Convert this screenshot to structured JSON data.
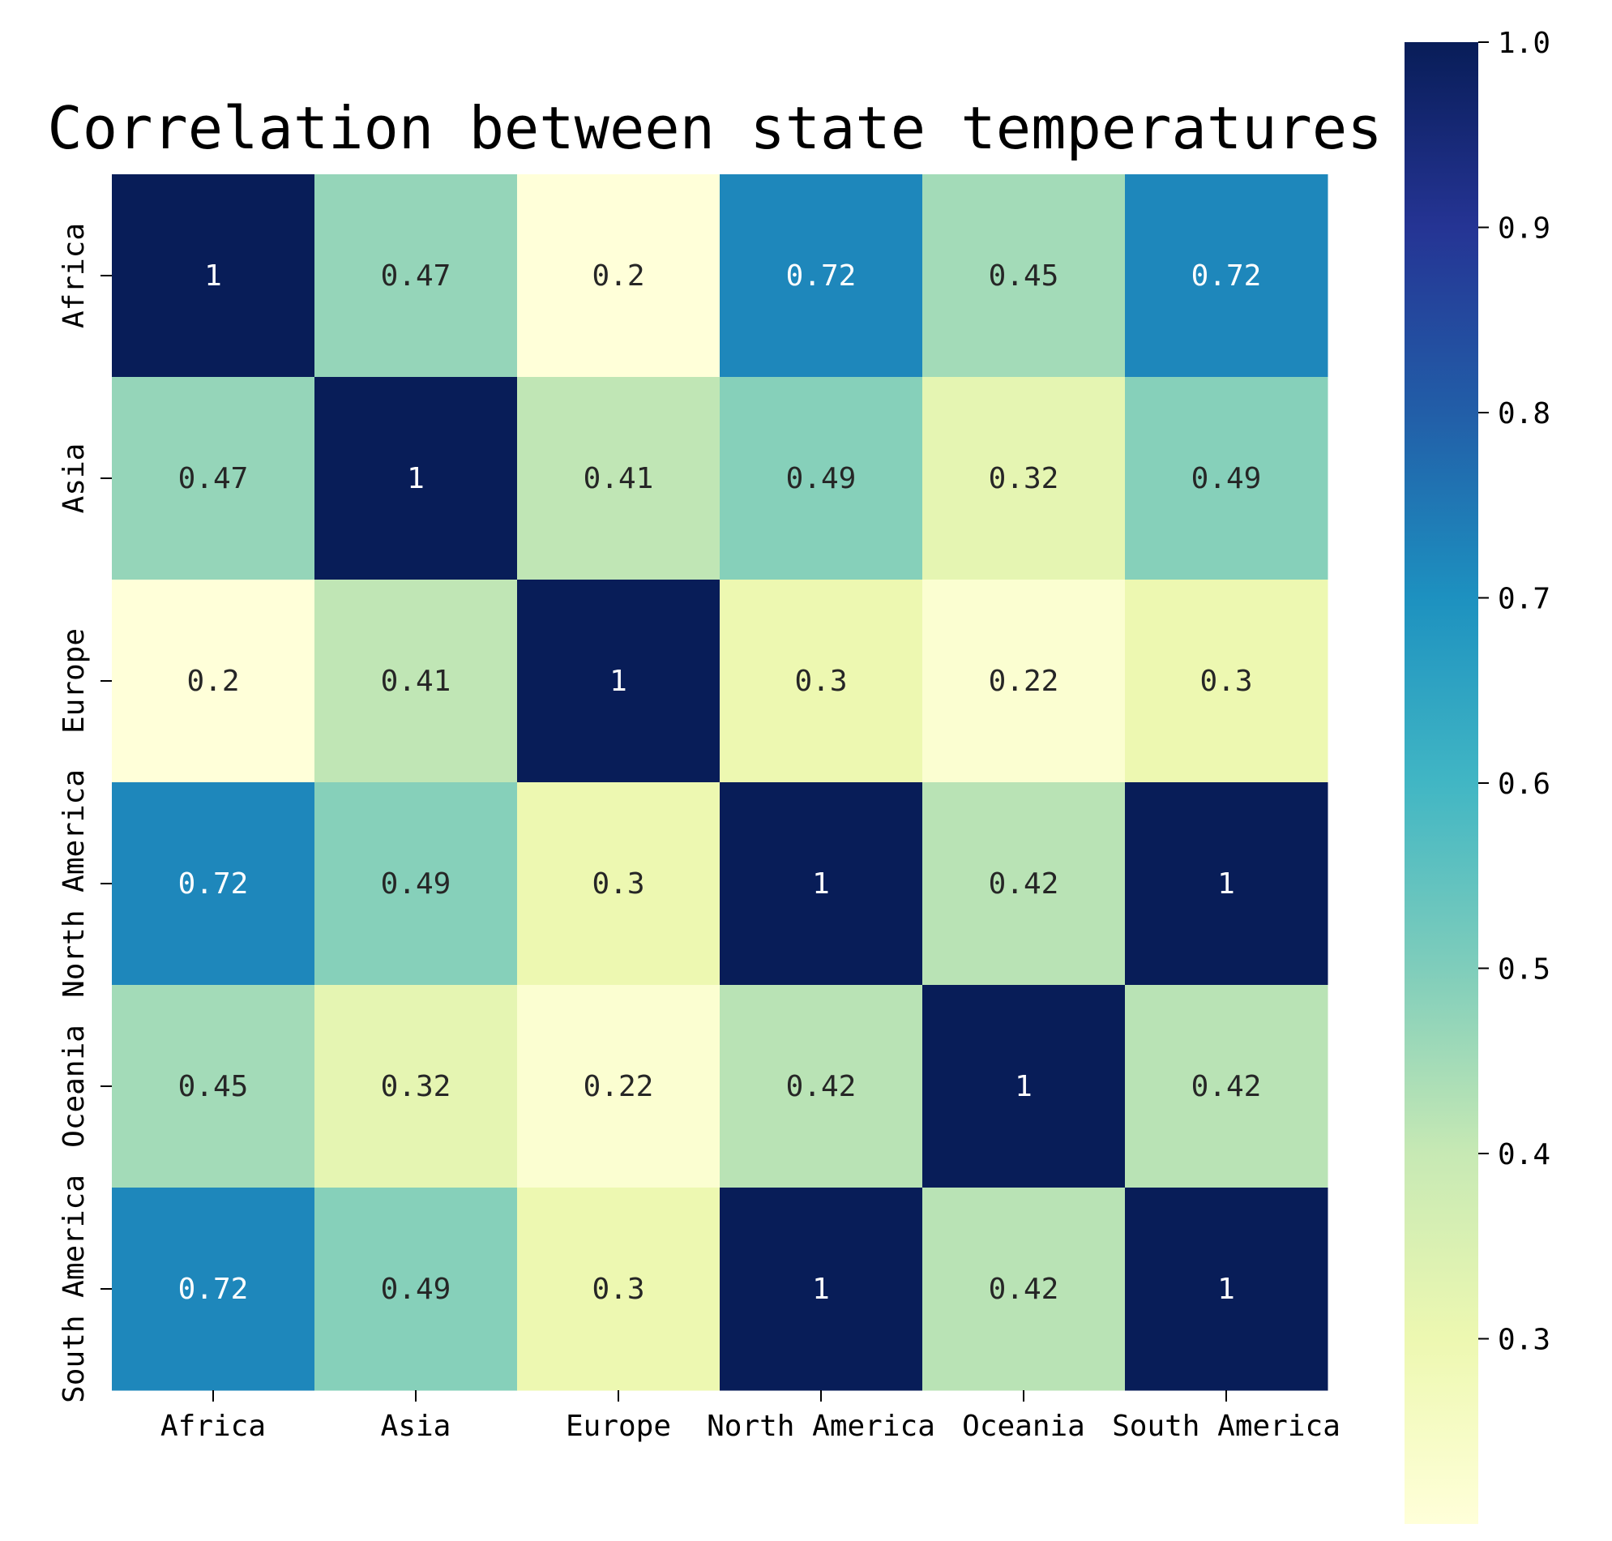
{
  "chart_data": {
    "type": "heatmap",
    "title": "Correlation between state temperatures",
    "rows": [
      "Africa",
      "Asia",
      "Europe",
      "North America",
      "Oceania",
      "South America"
    ],
    "columns": [
      "Africa",
      "Asia",
      "Europe",
      "North America",
      "Oceania",
      "South America"
    ],
    "values": [
      [
        1,
        0.47,
        0.2,
        0.72,
        0.45,
        0.72
      ],
      [
        0.47,
        1,
        0.41,
        0.49,
        0.32,
        0.49
      ],
      [
        0.2,
        0.41,
        1,
        0.3,
        0.22,
        0.3
      ],
      [
        0.72,
        0.49,
        0.3,
        1,
        0.42,
        1
      ],
      [
        0.45,
        0.32,
        0.22,
        0.42,
        1,
        0.42
      ],
      [
        0.72,
        0.49,
        0.3,
        1,
        0.42,
        1
      ]
    ],
    "colorbar": {
      "min": 0.2,
      "max": 1.0,
      "ticks": [
        "0.3",
        "0.4",
        "0.5",
        "0.6",
        "0.7",
        "0.8",
        "0.9",
        "1.0"
      ],
      "colormap": "YlGnBu",
      "colors": [
        "#ffffd9",
        "#edf8b1",
        "#c7e9b4",
        "#7fcdbb",
        "#41b6c4",
        "#1d91c0",
        "#225ea8",
        "#253494",
        "#081d58"
      ]
    },
    "annotations": true,
    "grid": false,
    "legend": "colorbar-right"
  }
}
